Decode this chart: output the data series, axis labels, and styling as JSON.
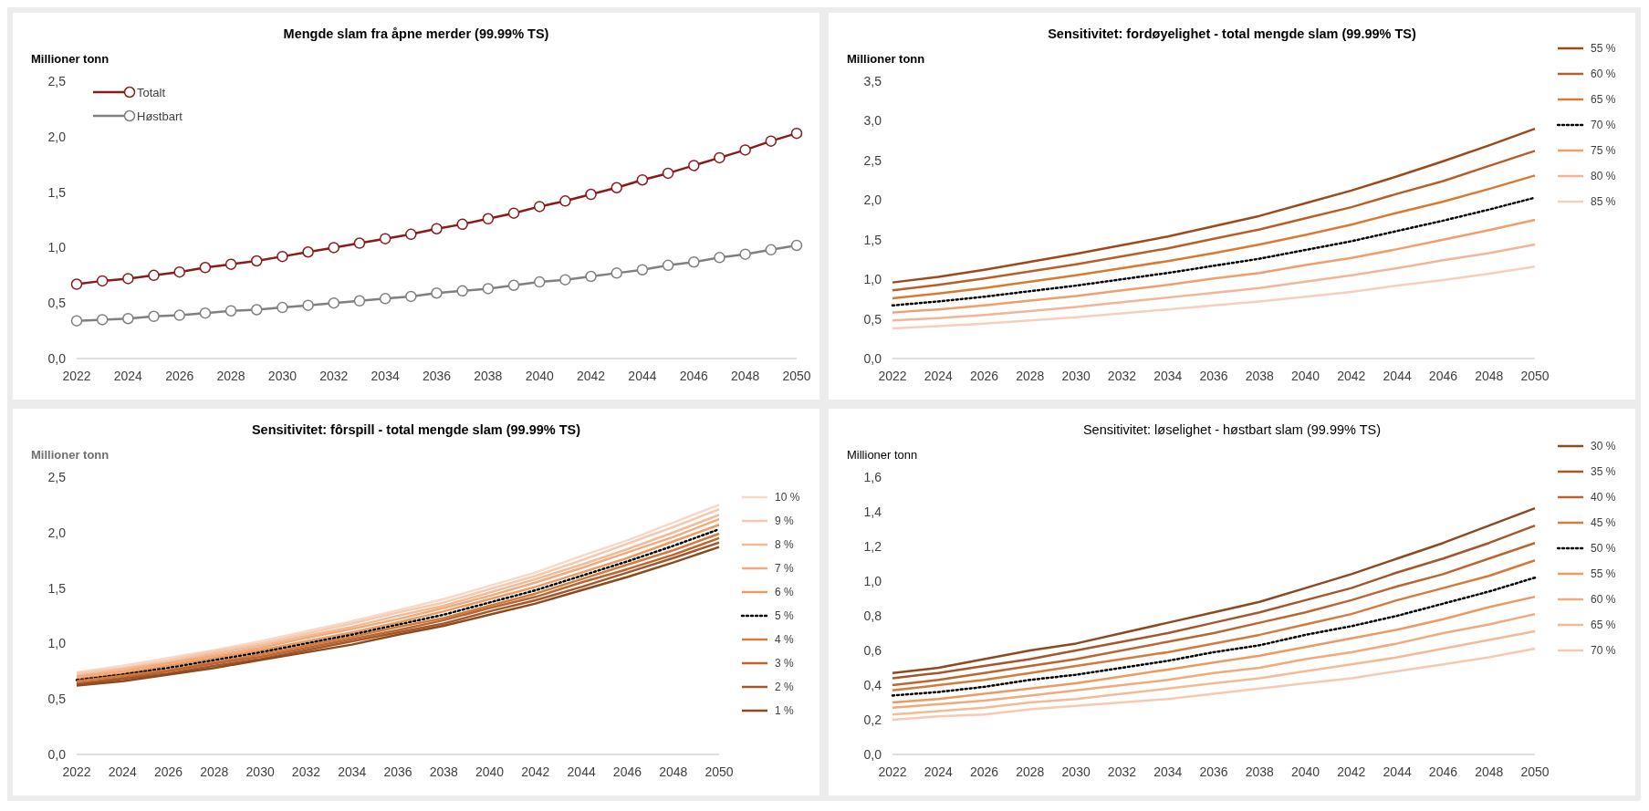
{
  "chart_data": [
    {
      "type": "line",
      "title": "Mengde slam fra åpne merder (99.99% TS)",
      "ylabel": "Millioner tonn",
      "marker": "circle",
      "legend": "top left",
      "grid": false,
      "x": [
        2022,
        2023,
        2024,
        2025,
        2026,
        2027,
        2028,
        2029,
        2030,
        2031,
        2032,
        2033,
        2034,
        2035,
        2036,
        2037,
        2038,
        2039,
        2040,
        2041,
        2042,
        2043,
        2044,
        2045,
        2046,
        2047,
        2048,
        2049,
        2050
      ],
      "xlim": [
        2022,
        2050
      ],
      "xticks": [
        2022,
        2024,
        2026,
        2028,
        2030,
        2032,
        2034,
        2036,
        2038,
        2040,
        2042,
        2044,
        2046,
        2048,
        2050
      ],
      "ylim": [
        0,
        2.5
      ],
      "yticks": [
        {
          "value": 0,
          "label": "0,0"
        },
        {
          "value": 0.5,
          "label": "0,5"
        },
        {
          "value": 1,
          "label": "1,0"
        },
        {
          "value": 1.5,
          "label": "1,5"
        },
        {
          "value": 2,
          "label": "2,0"
        },
        {
          "value": 2.5,
          "label": "2,5"
        }
      ],
      "series": [
        {
          "name": "Totalt",
          "color": "#8b1a1a",
          "values": [
            0.67,
            0.7,
            0.72,
            0.75,
            0.78,
            0.82,
            0.85,
            0.88,
            0.92,
            0.96,
            1.0,
            1.04,
            1.08,
            1.12,
            1.17,
            1.21,
            1.26,
            1.31,
            1.37,
            1.42,
            1.48,
            1.54,
            1.61,
            1.67,
            1.74,
            1.81,
            1.88,
            1.96,
            2.03
          ]
        },
        {
          "name": "Høstbart",
          "color": "#808080",
          "values": [
            0.34,
            0.35,
            0.36,
            0.38,
            0.39,
            0.41,
            0.43,
            0.44,
            0.46,
            0.48,
            0.5,
            0.52,
            0.54,
            0.56,
            0.59,
            0.61,
            0.63,
            0.66,
            0.69,
            0.71,
            0.74,
            0.77,
            0.8,
            0.84,
            0.87,
            0.91,
            0.94,
            0.98,
            1.02
          ]
        }
      ]
    },
    {
      "type": "line",
      "title": "Sensitivitet: fordøyelighet - total mengde slam (99.99% TS)",
      "ylabel": "Millioner tonn",
      "legend": "right",
      "grid": false,
      "x": [
        2022,
        2024,
        2026,
        2028,
        2030,
        2032,
        2034,
        2036,
        2038,
        2040,
        2042,
        2044,
        2046,
        2048,
        2050
      ],
      "xlim": [
        2022,
        2050
      ],
      "xticks": [
        2022,
        2024,
        2026,
        2028,
        2030,
        2032,
        2034,
        2036,
        2038,
        2040,
        2042,
        2044,
        2046,
        2048,
        2050
      ],
      "ylim": [
        0,
        3.5
      ],
      "yticks": [
        {
          "value": 0,
          "label": "0,0"
        },
        {
          "value": 0.5,
          "label": "0,5"
        },
        {
          "value": 1,
          "label": "1,0"
        },
        {
          "value": 1.5,
          "label": "1,5"
        },
        {
          "value": 2,
          "label": "2,0"
        },
        {
          "value": 2.5,
          "label": "2,5"
        },
        {
          "value": 3,
          "label": "3,0"
        },
        {
          "value": 3.5,
          "label": "3,5"
        }
      ],
      "series": [
        {
          "name": "55 %",
          "color": "#9c4a1a",
          "values": [
            0.96,
            1.03,
            1.12,
            1.22,
            1.32,
            1.43,
            1.54,
            1.67,
            1.8,
            1.96,
            2.12,
            2.3,
            2.49,
            2.69,
            2.9
          ]
        },
        {
          "name": "60 %",
          "color": "#b85f28",
          "values": [
            0.86,
            0.93,
            1.01,
            1.1,
            1.19,
            1.29,
            1.39,
            1.51,
            1.63,
            1.77,
            1.91,
            2.08,
            2.24,
            2.43,
            2.62
          ]
        },
        {
          "name": "65 %",
          "color": "#d97a32",
          "values": [
            0.76,
            0.82,
            0.89,
            0.97,
            1.05,
            1.14,
            1.23,
            1.33,
            1.44,
            1.56,
            1.69,
            1.84,
            1.98,
            2.14,
            2.31
          ]
        },
        {
          "name": "70 %",
          "color": "#000000",
          "line_style": "dotted",
          "values": [
            0.67,
            0.72,
            0.78,
            0.85,
            0.92,
            1.0,
            1.08,
            1.17,
            1.26,
            1.37,
            1.48,
            1.61,
            1.74,
            1.88,
            2.03
          ]
        },
        {
          "name": "75 %",
          "color": "#ef9f6c",
          "values": [
            0.58,
            0.62,
            0.67,
            0.73,
            0.79,
            0.86,
            0.93,
            1.01,
            1.08,
            1.18,
            1.27,
            1.38,
            1.5,
            1.62,
            1.75
          ]
        },
        {
          "name": "80 %",
          "color": "#f3b598",
          "values": [
            0.48,
            0.51,
            0.55,
            0.6,
            0.65,
            0.71,
            0.77,
            0.83,
            0.89,
            0.97,
            1.05,
            1.14,
            1.24,
            1.33,
            1.44
          ]
        },
        {
          "name": "85 %",
          "color": "#f7cfbd",
          "values": [
            0.38,
            0.41,
            0.44,
            0.48,
            0.52,
            0.57,
            0.62,
            0.67,
            0.72,
            0.78,
            0.84,
            0.92,
            0.99,
            1.07,
            1.16
          ]
        }
      ]
    },
    {
      "type": "line",
      "title": "Sensitivitet: fôrspill - total mengde slam (99.99% TS)",
      "ylabel": "Millioner tonn",
      "legend": "right",
      "grid": false,
      "x": [
        2022,
        2024,
        2026,
        2028,
        2030,
        2032,
        2034,
        2036,
        2038,
        2040,
        2042,
        2044,
        2046,
        2048,
        2050
      ],
      "xlim": [
        2022,
        2050
      ],
      "xticks": [
        2022,
        2024,
        2026,
        2028,
        2030,
        2032,
        2034,
        2036,
        2038,
        2040,
        2042,
        2044,
        2046,
        2048,
        2050
      ],
      "ylim": [
        0,
        2.5
      ],
      "yticks": [
        {
          "value": 0,
          "label": "0,0"
        },
        {
          "value": 0.5,
          "label": "0,5"
        },
        {
          "value": 1,
          "label": "1,0"
        },
        {
          "value": 1.5,
          "label": "1,5"
        },
        {
          "value": 2,
          "label": "2,0"
        },
        {
          "value": 2.5,
          "label": "2,5"
        }
      ],
      "series": [
        {
          "name": "10 %",
          "color": "#f8d8c8",
          "values": [
            0.74,
            0.8,
            0.87,
            0.94,
            1.02,
            1.11,
            1.2,
            1.3,
            1.4,
            1.52,
            1.64,
            1.79,
            1.93,
            2.09,
            2.25
          ]
        },
        {
          "name": "9 %",
          "color": "#f6cab0",
          "values": [
            0.73,
            0.78,
            0.85,
            0.93,
            1.0,
            1.09,
            1.18,
            1.28,
            1.37,
            1.49,
            1.61,
            1.75,
            1.9,
            2.05,
            2.21
          ]
        },
        {
          "name": "8 %",
          "color": "#f3ba96",
          "values": [
            0.71,
            0.77,
            0.83,
            0.91,
            0.98,
            1.07,
            1.15,
            1.25,
            1.34,
            1.46,
            1.58,
            1.71,
            1.85,
            2.0,
            2.16
          ]
        },
        {
          "name": "7 %",
          "color": "#f0aa7c",
          "values": [
            0.7,
            0.75,
            0.82,
            0.89,
            0.96,
            1.05,
            1.13,
            1.22,
            1.32,
            1.43,
            1.55,
            1.68,
            1.82,
            1.96,
            2.12
          ]
        },
        {
          "name": "6 %",
          "color": "#ec9a62",
          "values": [
            0.68,
            0.73,
            0.8,
            0.87,
            0.94,
            1.02,
            1.1,
            1.19,
            1.29,
            1.4,
            1.51,
            1.64,
            1.77,
            1.92,
            2.07
          ]
        },
        {
          "name": "5 %",
          "color": "#000000",
          "line_style": "dotted",
          "values": [
            0.67,
            0.72,
            0.78,
            0.85,
            0.92,
            1.0,
            1.08,
            1.17,
            1.26,
            1.37,
            1.48,
            1.61,
            1.74,
            1.88,
            2.03
          ]
        },
        {
          "name": "4 %",
          "color": "#d37a3c",
          "values": [
            0.66,
            0.71,
            0.76,
            0.83,
            0.9,
            0.98,
            1.06,
            1.15,
            1.23,
            1.34,
            1.45,
            1.58,
            1.71,
            1.84,
            1.99
          ]
        },
        {
          "name": "3 %",
          "color": "#bd6530",
          "values": [
            0.64,
            0.69,
            0.75,
            0.82,
            0.88,
            0.96,
            1.04,
            1.12,
            1.21,
            1.32,
            1.42,
            1.55,
            1.67,
            1.8,
            1.95
          ]
        },
        {
          "name": "2 %",
          "color": "#a5562a",
          "values": [
            0.63,
            0.68,
            0.73,
            0.8,
            0.86,
            0.94,
            1.02,
            1.1,
            1.18,
            1.29,
            1.39,
            1.51,
            1.64,
            1.77,
            1.91
          ]
        },
        {
          "name": "1 %",
          "color": "#8c4a1e",
          "values": [
            0.62,
            0.66,
            0.72,
            0.78,
            0.85,
            0.92,
            0.99,
            1.08,
            1.16,
            1.26,
            1.36,
            1.48,
            1.6,
            1.73,
            1.87
          ]
        }
      ]
    },
    {
      "type": "line",
      "title": "Sensitivitet: løselighet - høstbart slam (99.99% TS)",
      "ylabel": "Millioner tonn",
      "legend": "right",
      "grid": false,
      "x": [
        2022,
        2024,
        2026,
        2028,
        2030,
        2032,
        2034,
        2036,
        2038,
        2040,
        2042,
        2044,
        2046,
        2048,
        2050
      ],
      "xlim": [
        2022,
        2050
      ],
      "xticks": [
        2022,
        2024,
        2026,
        2028,
        2030,
        2032,
        2034,
        2036,
        2038,
        2040,
        2042,
        2044,
        2046,
        2048,
        2050
      ],
      "ylim": [
        0,
        1.6
      ],
      "yticks": [
        {
          "value": 0,
          "label": "0,0"
        },
        {
          "value": 0.2,
          "label": "0,2"
        },
        {
          "value": 0.4,
          "label": "0,4"
        },
        {
          "value": 0.6,
          "label": "0,6"
        },
        {
          "value": 0.8,
          "label": "0,8"
        },
        {
          "value": 1,
          "label": "1,0"
        },
        {
          "value": 1.2,
          "label": "1,2"
        },
        {
          "value": 1.4,
          "label": "1,4"
        },
        {
          "value": 1.6,
          "label": "1,6"
        }
      ],
      "series": [
        {
          "name": "30 %",
          "color": "#8c4a1e",
          "values": [
            0.47,
            0.5,
            0.55,
            0.6,
            0.64,
            0.7,
            0.76,
            0.82,
            0.88,
            0.96,
            1.04,
            1.13,
            1.22,
            1.32,
            1.42
          ]
        },
        {
          "name": "35 %",
          "color": "#a5562a",
          "values": [
            0.44,
            0.47,
            0.51,
            0.55,
            0.6,
            0.65,
            0.7,
            0.76,
            0.82,
            0.89,
            0.96,
            1.05,
            1.13,
            1.22,
            1.32
          ]
        },
        {
          "name": "40 %",
          "color": "#bd6530",
          "values": [
            0.4,
            0.43,
            0.47,
            0.51,
            0.55,
            0.6,
            0.65,
            0.7,
            0.76,
            0.82,
            0.89,
            0.97,
            1.04,
            1.13,
            1.22
          ]
        },
        {
          "name": "45 %",
          "color": "#d37a3c",
          "values": [
            0.37,
            0.4,
            0.43,
            0.47,
            0.51,
            0.55,
            0.59,
            0.64,
            0.69,
            0.75,
            0.81,
            0.89,
            0.96,
            1.03,
            1.12
          ]
        },
        {
          "name": "50 %",
          "color": "#000000",
          "line_style": "dotted",
          "values": [
            0.34,
            0.36,
            0.39,
            0.43,
            0.46,
            0.5,
            0.54,
            0.59,
            0.63,
            0.69,
            0.74,
            0.8,
            0.87,
            0.94,
            1.02
          ]
        },
        {
          "name": "55 %",
          "color": "#ec9a62",
          "values": [
            0.3,
            0.32,
            0.35,
            0.38,
            0.41,
            0.45,
            0.49,
            0.53,
            0.57,
            0.62,
            0.67,
            0.72,
            0.78,
            0.85,
            0.91
          ]
        },
        {
          "name": "60 %",
          "color": "#f0aa7c",
          "values": [
            0.27,
            0.29,
            0.31,
            0.34,
            0.37,
            0.4,
            0.43,
            0.47,
            0.5,
            0.55,
            0.59,
            0.64,
            0.7,
            0.75,
            0.81
          ]
        },
        {
          "name": "65 %",
          "color": "#f3ba96",
          "values": [
            0.23,
            0.25,
            0.27,
            0.3,
            0.32,
            0.35,
            0.38,
            0.41,
            0.44,
            0.48,
            0.52,
            0.56,
            0.61,
            0.66,
            0.71
          ]
        },
        {
          "name": "70 %",
          "color": "#f6cab0",
          "values": [
            0.2,
            0.22,
            0.23,
            0.26,
            0.28,
            0.3,
            0.32,
            0.35,
            0.38,
            0.41,
            0.44,
            0.48,
            0.52,
            0.56,
            0.61
          ]
        }
      ]
    }
  ]
}
